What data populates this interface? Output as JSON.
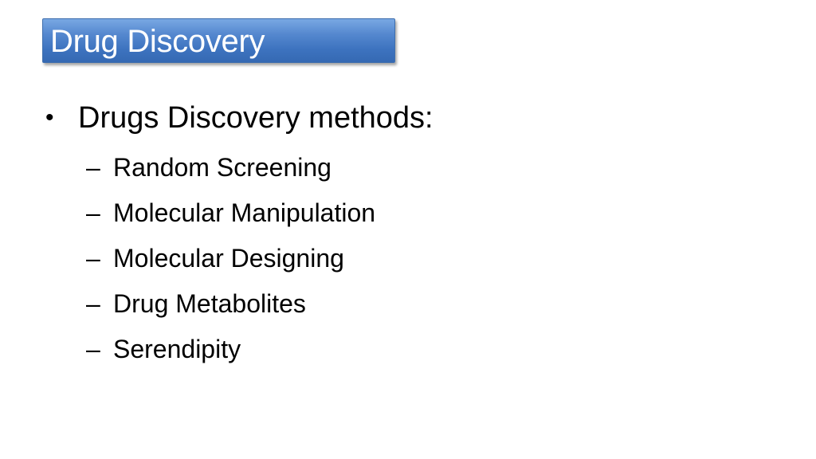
{
  "slide": {
    "title": "Drug Discovery",
    "bullet": {
      "marker": "•",
      "text": "Drugs Discovery methods:"
    },
    "sub_marker": "–",
    "sub_items": [
      "Random Screening",
      "Molecular Manipulation",
      "Molecular Designing",
      "Drug Metabolites",
      "Serendipity"
    ]
  },
  "colors": {
    "title_fill_top": "#79a8e3",
    "title_fill_bottom": "#3569b3",
    "title_border": "#3f6fae",
    "title_text": "#ffffff",
    "body_text": "#000000",
    "background": "#ffffff"
  }
}
